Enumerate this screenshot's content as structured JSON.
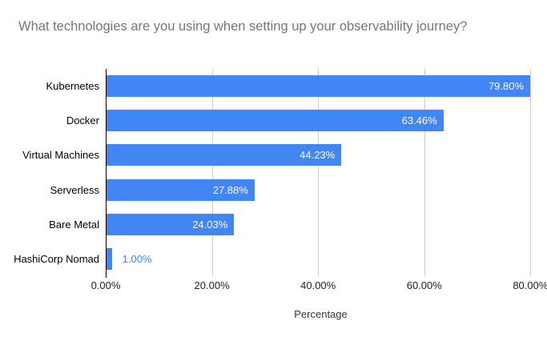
{
  "chart_data": {
    "type": "bar",
    "orientation": "horizontal",
    "title": "What technologies are you using when setting up your observability journey?",
    "categories": [
      "Kubernetes",
      "Docker",
      "Virtual Machines",
      "Serverless",
      "Bare Metal",
      "HashiCorp Nomad"
    ],
    "values": [
      79.8,
      63.46,
      44.23,
      27.88,
      24.03,
      1.0
    ],
    "value_labels": [
      "79.80%",
      "63.46%",
      "44.23%",
      "27.88%",
      "24.03%",
      "1.00%"
    ],
    "xlabel": "Percentage",
    "ylabel": "",
    "xlim": [
      0,
      81
    ],
    "x_ticks": [
      0,
      20,
      40,
      60,
      80
    ],
    "x_tick_labels": [
      "0.00%",
      "20.00%",
      "40.00%",
      "60.00%",
      "80.00%"
    ],
    "grid": true,
    "legend": "none",
    "colors": {
      "bar": "#4285F4",
      "title": "#757575",
      "gridline": "#cccccc",
      "axis_line": "#000000",
      "label_inside": "#ffffff",
      "label_outside": "#4285F4",
      "tick_label": "#222222",
      "axis_title": "#333333",
      "category_label": "#000000",
      "background": "#ffffff"
    }
  }
}
